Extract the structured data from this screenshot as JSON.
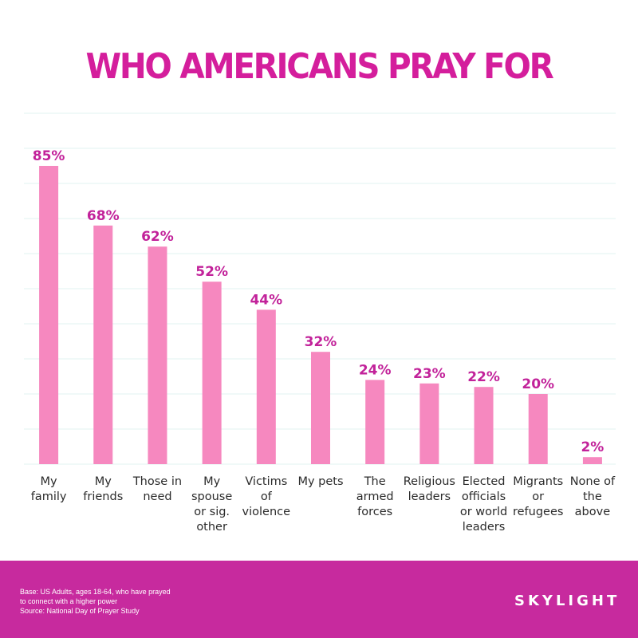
{
  "title": "WHO AMERICANS PRAY FOR",
  "chart_data": {
    "type": "bar",
    "categories": [
      [
        "My",
        "family"
      ],
      [
        "My",
        "friends"
      ],
      [
        "Those in",
        "need"
      ],
      [
        "My",
        "spouse",
        "or sig.",
        "other"
      ],
      [
        "Victims",
        "of",
        "violence"
      ],
      [
        "My pets"
      ],
      [
        "The",
        "armed",
        "forces"
      ],
      [
        "Religious",
        "leaders"
      ],
      [
        "Elected",
        "officials",
        "or world",
        "leaders"
      ],
      [
        "Migrants",
        "or",
        "refugees"
      ],
      [
        "None of",
        "the",
        "above"
      ]
    ],
    "values": [
      85,
      68,
      62,
      52,
      44,
      32,
      24,
      23,
      22,
      20,
      2
    ],
    "value_labels": [
      "85%",
      "68%",
      "62%",
      "52%",
      "44%",
      "32%",
      "24%",
      "23%",
      "22%",
      "20%",
      "2%"
    ],
    "ylim": [
      0,
      100
    ],
    "grid": true,
    "bar_color": "#f688bf",
    "label_color": "#c2229a",
    "grid_color": "#e2f3f2"
  },
  "footer": {
    "note_lines": [
      "Base: US Adults, ages 18-64, who have prayed",
      "to connect with a higher power",
      "Source: National Day of Prayer Study"
    ],
    "brand": "SKYLIGHT",
    "background": "#c72a9e"
  }
}
